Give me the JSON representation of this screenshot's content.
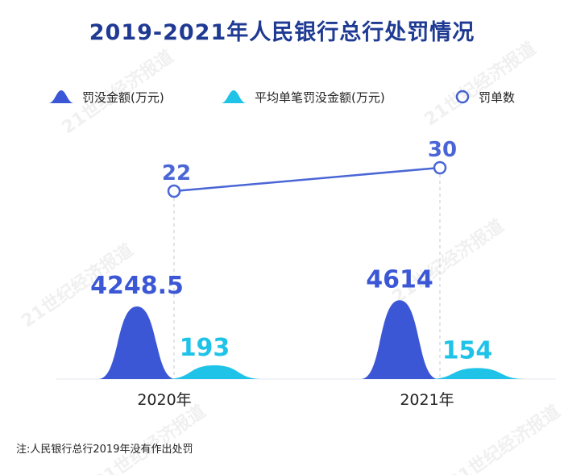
{
  "chart_data": {
    "type": "area",
    "title": "2019-2021年人民银行总行处罚情况",
    "categories": [
      "2020年",
      "2021年"
    ],
    "series": [
      {
        "name": "罚没金额(万元)",
        "values": [
          4248.5,
          4614
        ],
        "labels": [
          "4248.5",
          "4614"
        ],
        "color": "#3b57d6"
      },
      {
        "name": "平均单笔罚没金额(万元)",
        "values": [
          193,
          154
        ],
        "labels": [
          "193",
          "154"
        ],
        "color": "#1fc3e8"
      },
      {
        "name": "罚单数",
        "values": [
          22,
          30
        ],
        "labels": [
          "22",
          "30"
        ],
        "color": "#4a66d6",
        "line": true
      }
    ],
    "note": "注:人民银行总行2019年没有作出处罚",
    "watermark": "21世纪经济报道"
  }
}
